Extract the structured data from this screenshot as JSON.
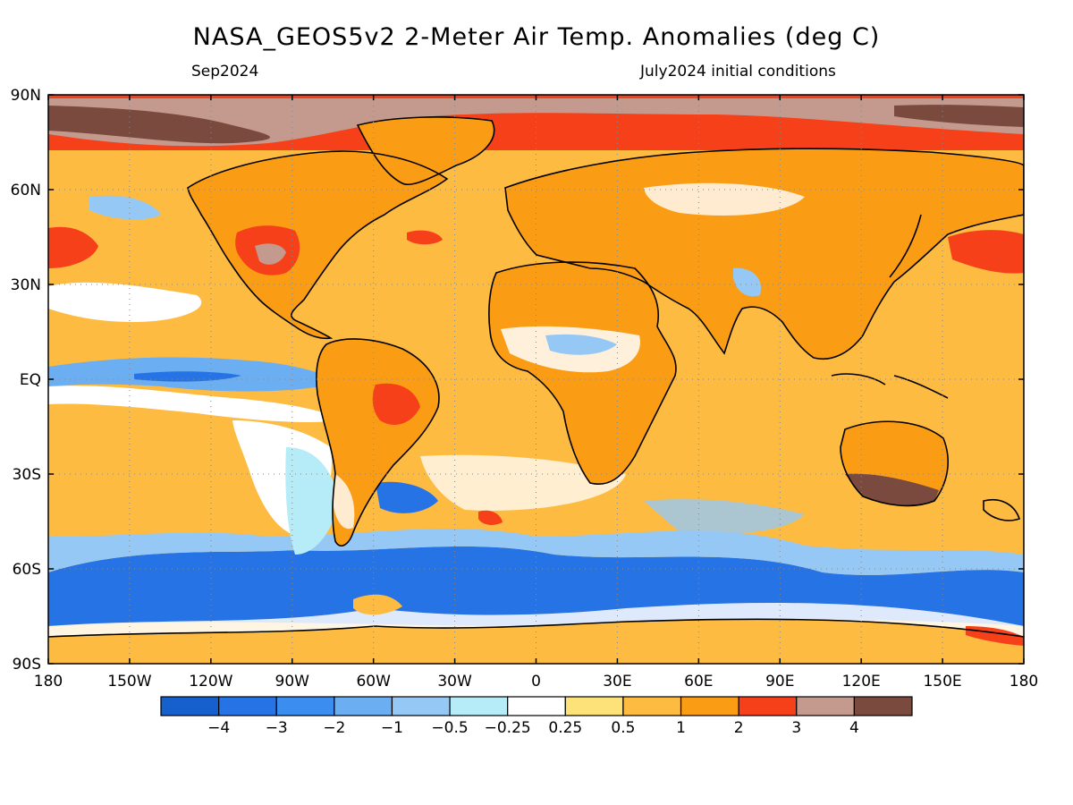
{
  "title": "NASA_GEOS5v2 2-Meter Air Temp. Anomalies (deg C)",
  "subtitle_left": "Sep2024",
  "subtitle_right": "July2024 initial conditions",
  "lat_labels": [
    {
      "text": "90N",
      "lat": 90
    },
    {
      "text": "60N",
      "lat": 60
    },
    {
      "text": "30N",
      "lat": 30
    },
    {
      "text": "EQ",
      "lat": 0
    },
    {
      "text": "30S",
      "lat": -30
    },
    {
      "text": "60S",
      "lat": -60
    },
    {
      "text": "90S",
      "lat": -90
    }
  ],
  "lon_labels": [
    {
      "text": "180",
      "lon": -180
    },
    {
      "text": "150W",
      "lon": -150
    },
    {
      "text": "120W",
      "lon": -120
    },
    {
      "text": "90W",
      "lon": -90
    },
    {
      "text": "60W",
      "lon": -60
    },
    {
      "text": "30W",
      "lon": -30
    },
    {
      "text": "0",
      "lon": 0
    },
    {
      "text": "30E",
      "lon": 30
    },
    {
      "text": "60E",
      "lon": 60
    },
    {
      "text": "90E",
      "lon": 90
    },
    {
      "text": "120E",
      "lon": 120
    },
    {
      "text": "150E",
      "lon": 150
    },
    {
      "text": "180",
      "lon": 180
    }
  ],
  "colorbar": {
    "colors": [
      "#1560cc",
      "#2673e6",
      "#3b8df0",
      "#6baef2",
      "#96c8f5",
      "#b6ecf7",
      "#ffffff",
      "#fde27a",
      "#fdbb42",
      "#fb9c15",
      "#f5401a",
      "#c49a8e",
      "#7a4a3e"
    ],
    "labels": [
      "-4",
      "-3",
      "-2",
      "-1",
      "-0.5",
      "-0.25",
      "0.25",
      "0.5",
      "1",
      "2",
      "3",
      "4"
    ]
  },
  "colors": {
    "ocean_warm": "#fdbb42",
    "land_warm": "#fb9c15",
    "neutral": "#ffffff",
    "cool": "#96c8f5",
    "cold": "#2673e6",
    "hot": "#f5401a",
    "very_hot": "#c49a8e",
    "extreme": "#7a4a3e",
    "coast": "#000000"
  }
}
